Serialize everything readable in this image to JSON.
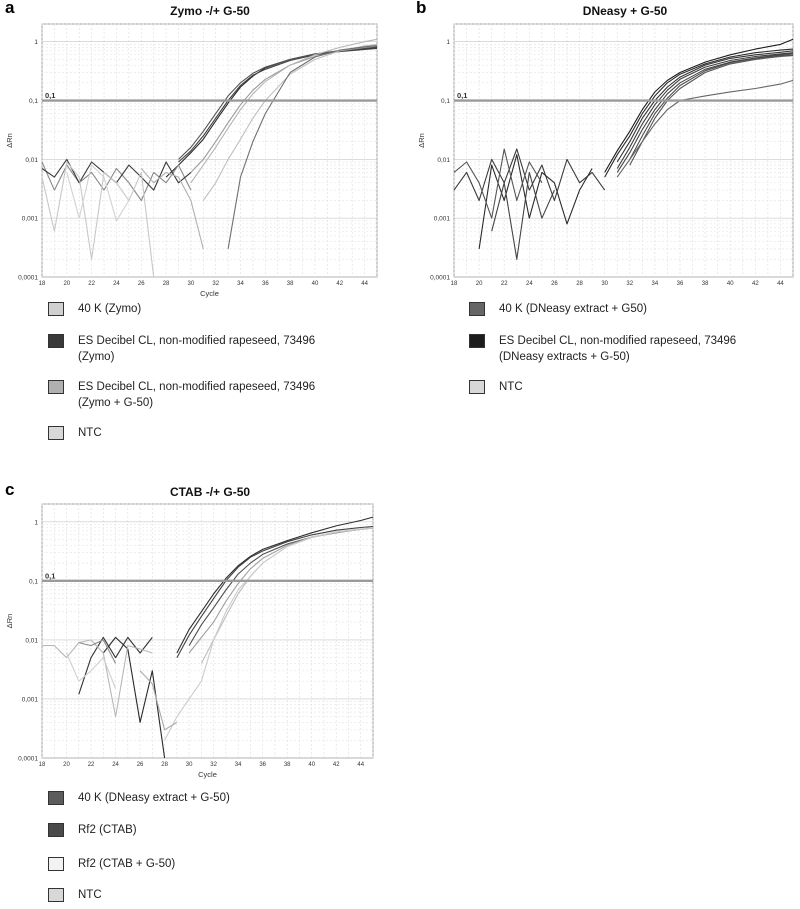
{
  "panels": [
    {
      "letter": "a",
      "title": "Zymo -/+ G-50",
      "legend": [
        {
          "label": "40 K (Zymo)",
          "color": "#d0d0d0"
        },
        {
          "label": "ES Decibel CL, non-modified rapeseed, 73496\n(Zymo)",
          "color": "#3a3a3a"
        },
        {
          "label": "ES Decibel CL, non-modified rapeseed, 73496\n(Zymo + G-50)",
          "color": "#b0b0b0"
        },
        {
          "label": "NTC",
          "color": "#d8d8d8"
        }
      ]
    },
    {
      "letter": "b",
      "title": "DNeasy + G-50",
      "legend": [
        {
          "label": "40 K (DNeasy extract + G50)",
          "color": "#666666"
        },
        {
          "label": "ES Decibel CL, non-modified rapeseed, 73496\n(DNeasy extracts + G-50)",
          "color": "#1c1c1c"
        },
        {
          "label": "NTC",
          "color": "#d8d8d8"
        }
      ]
    },
    {
      "letter": "c",
      "title": "CTAB -/+ G-50",
      "legend": [
        {
          "label": "40 K (DNeasy extract + G-50)",
          "color": "#5c5c5c"
        },
        {
          "label": "Rf2 (CTAB)",
          "color": "#4a4a4a"
        },
        {
          "label": "Rf2 (CTAB + G-50)",
          "color": "#f2f2f2"
        },
        {
          "label": "NTC",
          "color": "#d8d8d8"
        }
      ]
    }
  ],
  "chart_data": [
    {
      "type": "line",
      "title": "Zymo -/+ G-50",
      "xlabel": "Cycle",
      "ylabel": "ΔRn",
      "xlim": [
        18,
        45
      ],
      "ylim": [
        0.0001,
        2
      ],
      "yscale": "log",
      "x_ticks": [
        18,
        20,
        22,
        24,
        26,
        28,
        30,
        32,
        34,
        36,
        38,
        40,
        42,
        44
      ],
      "y_ticks": [
        "0,0001",
        "0,001",
        "0,01",
        "0,1",
        "1"
      ],
      "threshold": {
        "value": 0.1,
        "label": "0,1"
      },
      "grid": true,
      "series": [
        {
          "color": "#2a2a2a",
          "x": [
            28,
            29,
            30,
            31,
            32,
            33,
            34,
            35,
            36,
            38,
            40,
            42,
            44,
            45
          ],
          "y": [
            0.005,
            0.008,
            0.013,
            0.022,
            0.045,
            0.09,
            0.17,
            0.26,
            0.36,
            0.5,
            0.62,
            0.7,
            0.76,
            0.8
          ]
        },
        {
          "color": "#404040",
          "x": [
            29,
            30,
            31,
            32,
            33,
            34,
            35,
            36,
            38,
            40,
            42,
            44,
            45
          ],
          "y": [
            0.009,
            0.014,
            0.025,
            0.05,
            0.1,
            0.18,
            0.27,
            0.34,
            0.48,
            0.6,
            0.68,
            0.74,
            0.77
          ]
        },
        {
          "color": "#555555",
          "x": [
            29,
            30,
            31,
            32,
            33,
            34,
            35,
            36,
            38,
            40,
            42,
            44,
            45
          ],
          "y": [
            0.01,
            0.016,
            0.03,
            0.06,
            0.12,
            0.2,
            0.29,
            0.37,
            0.5,
            0.62,
            0.7,
            0.78,
            0.82
          ]
        },
        {
          "color": "#9a9a9a",
          "x": [
            30,
            31,
            32,
            33,
            34,
            35,
            36,
            38,
            40,
            42,
            44,
            45
          ],
          "y": [
            0.006,
            0.01,
            0.02,
            0.042,
            0.085,
            0.15,
            0.23,
            0.4,
            0.56,
            0.7,
            0.8,
            0.85
          ]
        },
        {
          "color": "#b5b5b5",
          "x": [
            30,
            31,
            32,
            33,
            34,
            35,
            36,
            38,
            40,
            42,
            44,
            45
          ],
          "y": [
            0.004,
            0.008,
            0.016,
            0.034,
            0.07,
            0.13,
            0.21,
            0.4,
            0.6,
            0.8,
            1.0,
            1.1
          ]
        },
        {
          "color": "#c0c0c0",
          "x": [
            31,
            32,
            33,
            34,
            35,
            36,
            38,
            40,
            42,
            44,
            45
          ],
          "y": [
            0.002,
            0.004,
            0.01,
            0.022,
            0.05,
            0.1,
            0.28,
            0.5,
            0.7,
            0.85,
            0.9
          ]
        },
        {
          "color": "#707070",
          "x": [
            33,
            34,
            35,
            36,
            38,
            40,
            42,
            44,
            45
          ],
          "y": [
            0.0003,
            0.005,
            0.02,
            0.06,
            0.3,
            0.55,
            0.72,
            0.82,
            0.86
          ]
        },
        {
          "color": "#8a8a8a",
          "x": [
            18,
            19,
            20,
            21,
            22,
            23,
            24,
            25,
            26,
            27,
            28,
            29,
            30
          ],
          "y": [
            0.009,
            0.003,
            0.008,
            0.004,
            0.006,
            0.003,
            0.007,
            0.004,
            0.002,
            0.006,
            0.004,
            0.008,
            0.003
          ]
        },
        {
          "color": "#3a3a3a",
          "x": [
            18,
            19,
            20,
            21,
            22,
            23,
            24,
            25,
            26,
            27,
            28,
            29,
            30
          ],
          "y": [
            0.007,
            0.005,
            0.01,
            0.004,
            0.009,
            0.006,
            0.004,
            0.008,
            0.005,
            0.003,
            0.009,
            0.004,
            0.006
          ]
        },
        {
          "color": "#c8c8c8",
          "x": [
            18,
            19,
            20,
            21,
            22,
            23,
            24,
            25,
            26,
            27
          ],
          "y": [
            0.005,
            0.0006,
            0.009,
            0.005,
            0.0002,
            0.006,
            0.004,
            0.002,
            0.006,
            0.0001
          ]
        },
        {
          "color": "#d2d2d2",
          "x": [
            20,
            21,
            22,
            23,
            24,
            25
          ],
          "y": [
            0.006,
            0.001,
            0.008,
            0.005,
            0.0009,
            0.002
          ]
        },
        {
          "color": "#b0b0b0",
          "x": [
            26,
            27,
            28,
            29,
            30,
            31
          ],
          "y": [
            0.007,
            0.004,
            0.006,
            0.005,
            0.002,
            0.0003
          ]
        }
      ]
    },
    {
      "type": "line",
      "title": "DNeasy + G-50",
      "xlabel": "",
      "ylabel": "ΔRn",
      "xlim": [
        18,
        45
      ],
      "ylim": [
        0.0001,
        2
      ],
      "yscale": "log",
      "x_ticks": [
        18,
        20,
        22,
        24,
        26,
        28,
        30,
        32,
        34,
        36,
        38,
        40,
        42,
        44
      ],
      "y_ticks": [
        "0,0001",
        "0,001",
        "0,01",
        "0,1",
        "1"
      ],
      "threshold": {
        "value": 0.1,
        "label": "0,1"
      },
      "grid": true,
      "series": [
        {
          "color": "#1c1c1c",
          "x": [
            30,
            31,
            32,
            33,
            34,
            35,
            36,
            38,
            40,
            42,
            44,
            45
          ],
          "y": [
            0.006,
            0.014,
            0.03,
            0.07,
            0.14,
            0.22,
            0.3,
            0.45,
            0.6,
            0.75,
            0.9,
            1.1
          ]
        },
        {
          "color": "#2a2a2a",
          "x": [
            30,
            31,
            32,
            33,
            34,
            35,
            36,
            38,
            40,
            42,
            44,
            45
          ],
          "y": [
            0.005,
            0.012,
            0.025,
            0.06,
            0.12,
            0.2,
            0.28,
            0.42,
            0.55,
            0.65,
            0.72,
            0.75
          ]
        },
        {
          "color": "#333333",
          "x": [
            31,
            32,
            33,
            34,
            35,
            36,
            38,
            40,
            42,
            44,
            45
          ],
          "y": [
            0.009,
            0.02,
            0.05,
            0.1,
            0.17,
            0.25,
            0.4,
            0.52,
            0.6,
            0.66,
            0.7
          ]
        },
        {
          "color": "#3d3d3d",
          "x": [
            31,
            32,
            33,
            34,
            35,
            36,
            38,
            40,
            42,
            44,
            45
          ],
          "y": [
            0.007,
            0.016,
            0.04,
            0.085,
            0.15,
            0.23,
            0.37,
            0.48,
            0.56,
            0.62,
            0.65
          ]
        },
        {
          "color": "#454545",
          "x": [
            31,
            32,
            33,
            34,
            35,
            36,
            38,
            40,
            42,
            44,
            45
          ],
          "y": [
            0.006,
            0.013,
            0.032,
            0.07,
            0.13,
            0.2,
            0.34,
            0.45,
            0.53,
            0.6,
            0.63
          ]
        },
        {
          "color": "#4d4d4d",
          "x": [
            32,
            33,
            34,
            35,
            36,
            38,
            40,
            42,
            44,
            45
          ],
          "y": [
            0.01,
            0.025,
            0.06,
            0.11,
            0.18,
            0.32,
            0.44,
            0.52,
            0.58,
            0.6
          ]
        },
        {
          "color": "#555555",
          "x": [
            32,
            33,
            34,
            35,
            36,
            38,
            40,
            42,
            44,
            45
          ],
          "y": [
            0.008,
            0.02,
            0.05,
            0.1,
            0.16,
            0.3,
            0.42,
            0.5,
            0.56,
            0.58
          ]
        },
        {
          "color": "#666666",
          "x": [
            31,
            32,
            33,
            34,
            35,
            36,
            38,
            40,
            42,
            44,
            45
          ],
          "y": [
            0.005,
            0.01,
            0.02,
            0.04,
            0.07,
            0.1,
            0.12,
            0.14,
            0.16,
            0.19,
            0.22
          ]
        },
        {
          "color": "#3a3a3a",
          "x": [
            18,
            19,
            20,
            21,
            22,
            23,
            24,
            25,
            26,
            27,
            28,
            29,
            30
          ],
          "y": [
            0.003,
            0.006,
            0.002,
            0.01,
            0.004,
            0.015,
            0.003,
            0.008,
            0.002,
            0.01,
            0.004,
            0.006,
            0.003
          ]
        },
        {
          "color": "#2a2a2a",
          "x": [
            20,
            21,
            22,
            23,
            24,
            25,
            26,
            27,
            28,
            29
          ],
          "y": [
            0.0003,
            0.008,
            0.002,
            0.012,
            0.001,
            0.006,
            0.004,
            0.0008,
            0.003,
            0.007
          ]
        },
        {
          "color": "#555555",
          "x": [
            18,
            19,
            20,
            21,
            22,
            23,
            24,
            25
          ],
          "y": [
            0.006,
            0.009,
            0.004,
            0.001,
            0.015,
            0.002,
            0.009,
            0.004
          ]
        },
        {
          "color": "#444444",
          "x": [
            21,
            22,
            23,
            24,
            25,
            26
          ],
          "y": [
            0.0006,
            0.004,
            0.0002,
            0.006,
            0.001,
            0.003
          ]
        }
      ]
    },
    {
      "type": "line",
      "title": "CTAB -/+ G-50",
      "xlabel": "Cycle",
      "ylabel": "ΔRn",
      "xlim": [
        18,
        45
      ],
      "ylim": [
        0.0001,
        2
      ],
      "yscale": "log",
      "x_ticks": [
        18,
        20,
        22,
        24,
        26,
        28,
        30,
        32,
        34,
        36,
        38,
        40,
        42,
        44
      ],
      "y_ticks": [
        "0,0001",
        "0,001",
        "0,01",
        "0,1",
        "1"
      ],
      "threshold": {
        "value": 0.1,
        "label": "0,1"
      },
      "grid": true,
      "series": [
        {
          "color": "#2e2e2e",
          "x": [
            29,
            30,
            31,
            32,
            33,
            34,
            35,
            36,
            38,
            40,
            42,
            44,
            45
          ],
          "y": [
            0.006,
            0.015,
            0.03,
            0.06,
            0.11,
            0.18,
            0.26,
            0.34,
            0.48,
            0.65,
            0.85,
            1.05,
            1.2
          ]
        },
        {
          "color": "#404040",
          "x": [
            29,
            30,
            31,
            32,
            33,
            34,
            35,
            36,
            38,
            40,
            42,
            44,
            45
          ],
          "y": [
            0.005,
            0.012,
            0.025,
            0.05,
            0.1,
            0.17,
            0.25,
            0.32,
            0.46,
            0.6,
            0.72,
            0.8,
            0.83
          ]
        },
        {
          "color": "#4f4f4f",
          "x": [
            30,
            31,
            32,
            33,
            34,
            35,
            36,
            38,
            40,
            42,
            44,
            45
          ],
          "y": [
            0.008,
            0.018,
            0.035,
            0.07,
            0.13,
            0.2,
            0.28,
            0.42,
            0.55,
            0.65,
            0.75,
            0.78
          ]
        },
        {
          "color": "#9f9f9f",
          "x": [
            30,
            31,
            32,
            33,
            34,
            35,
            36,
            38,
            40,
            42,
            44,
            45
          ],
          "y": [
            0.006,
            0.011,
            0.02,
            0.045,
            0.09,
            0.16,
            0.24,
            0.4,
            0.55,
            0.66,
            0.75,
            0.78
          ]
        },
        {
          "color": "#bdbdbd",
          "x": [
            31,
            32,
            33,
            34,
            35,
            36,
            38,
            40,
            42,
            44,
            45
          ],
          "y": [
            0.004,
            0.01,
            0.025,
            0.06,
            0.12,
            0.2,
            0.38,
            0.54,
            0.66,
            0.74,
            0.78
          ]
        },
        {
          "color": "#cccccc",
          "x": [
            28,
            29,
            30,
            31,
            32,
            33,
            34,
            36,
            38,
            40,
            42,
            44,
            45
          ],
          "y": [
            0.0002,
            0.0005,
            0.001,
            0.002,
            0.01,
            0.03,
            0.07,
            0.2,
            0.38,
            0.55,
            0.68,
            0.76,
            0.8
          ]
        },
        {
          "color": "#333333",
          "x": [
            21,
            22,
            23,
            24,
            25,
            26,
            27
          ],
          "y": [
            0.0012,
            0.005,
            0.011,
            0.005,
            0.011,
            0.006,
            0.011
          ]
        },
        {
          "color": "#2a2a2a",
          "x": [
            23,
            24,
            25,
            26,
            27,
            28
          ],
          "y": [
            0.006,
            0.011,
            0.007,
            0.0004,
            0.003,
            0.0001
          ]
        },
        {
          "color": "#b8b8b8",
          "x": [
            18,
            19,
            20,
            21,
            22,
            23,
            24,
            25,
            26,
            27
          ],
          "y": [
            0.008,
            0.008,
            0.005,
            0.009,
            0.01,
            0.006,
            0.0005,
            0.008,
            0.007,
            0.006
          ]
        },
        {
          "color": "#d0d0d0",
          "x": [
            20,
            21,
            22,
            23,
            24
          ],
          "y": [
            0.006,
            0.002,
            0.003,
            0.005,
            0.0015
          ]
        },
        {
          "color": "#8a8a8a",
          "x": [
            21,
            22,
            23,
            24
          ],
          "y": [
            0.009,
            0.008,
            0.01,
            0.004
          ]
        },
        {
          "color": "#aaaaaa",
          "x": [
            26,
            27,
            28,
            29
          ],
          "y": [
            0.003,
            0.0018,
            0.0003,
            0.0004
          ]
        }
      ]
    }
  ]
}
